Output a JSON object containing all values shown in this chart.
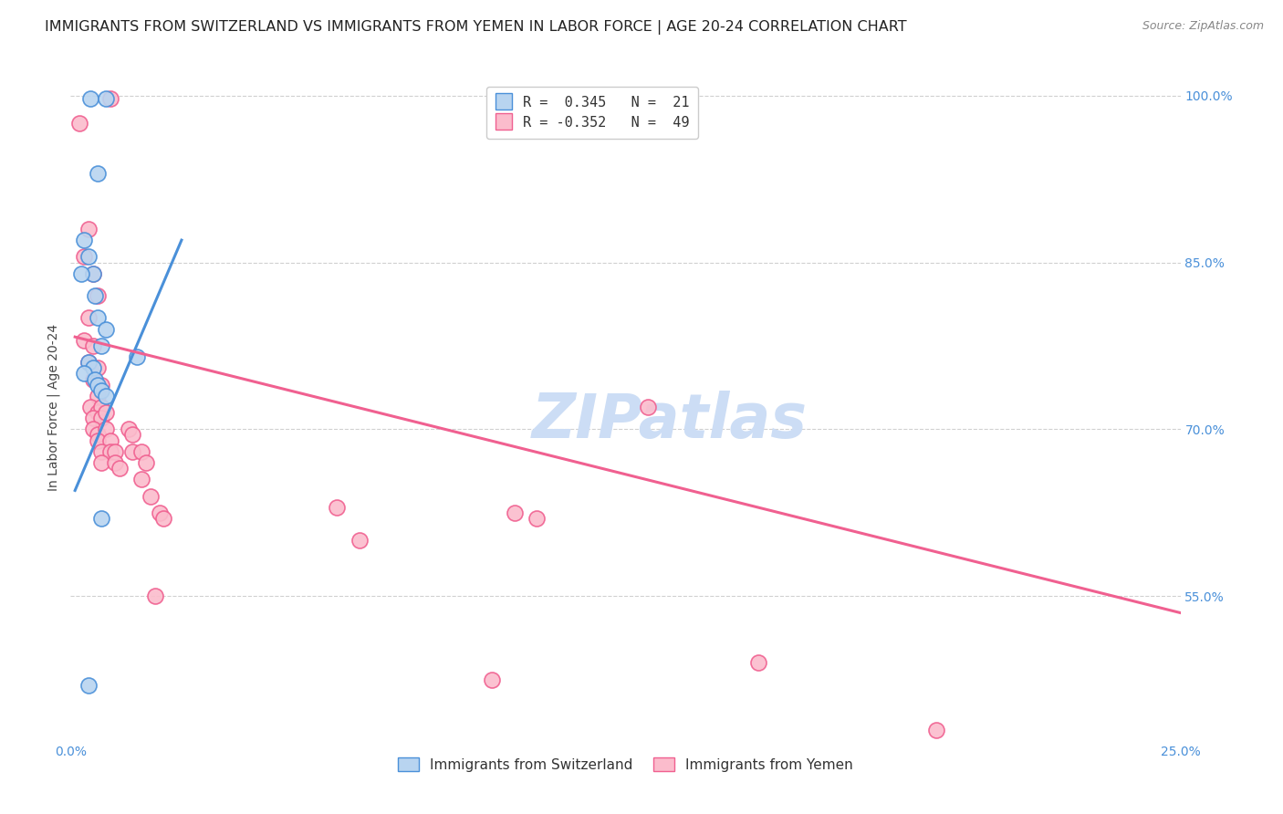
{
  "title": "IMMIGRANTS FROM SWITZERLAND VS IMMIGRANTS FROM YEMEN IN LABOR FORCE | AGE 20-24 CORRELATION CHART",
  "source": "Source: ZipAtlas.com",
  "ylabel": "In Labor Force | Age 20-24",
  "xlim": [
    0.0,
    0.25
  ],
  "ylim": [
    0.42,
    1.02
  ],
  "x_tick_positions": [
    0.0,
    0.05,
    0.1,
    0.15,
    0.2,
    0.25
  ],
  "x_tick_labels": [
    "0.0%",
    "",
    "",
    "",
    "",
    "25.0%"
  ],
  "y_tick_positions": [
    0.55,
    0.7,
    0.85,
    1.0
  ],
  "y_tick_labels": [
    "55.0%",
    "70.0%",
    "85.0%",
    "100.0%"
  ],
  "swiss_scatter": [
    [
      0.0045,
      0.997
    ],
    [
      0.008,
      0.997
    ],
    [
      0.006,
      0.93
    ],
    [
      0.003,
      0.87
    ],
    [
      0.004,
      0.855
    ],
    [
      0.005,
      0.84
    ],
    [
      0.0055,
      0.82
    ],
    [
      0.006,
      0.8
    ],
    [
      0.0025,
      0.84
    ],
    [
      0.008,
      0.79
    ],
    [
      0.007,
      0.775
    ],
    [
      0.004,
      0.76
    ],
    [
      0.005,
      0.755
    ],
    [
      0.003,
      0.75
    ],
    [
      0.0055,
      0.745
    ],
    [
      0.006,
      0.74
    ],
    [
      0.007,
      0.735
    ],
    [
      0.008,
      0.73
    ],
    [
      0.015,
      0.765
    ],
    [
      0.007,
      0.62
    ],
    [
      0.004,
      0.47
    ]
  ],
  "yemen_scatter": [
    [
      0.002,
      0.975
    ],
    [
      0.009,
      0.997
    ],
    [
      0.004,
      0.88
    ],
    [
      0.003,
      0.855
    ],
    [
      0.005,
      0.84
    ],
    [
      0.006,
      0.82
    ],
    [
      0.004,
      0.8
    ],
    [
      0.003,
      0.78
    ],
    [
      0.005,
      0.775
    ],
    [
      0.004,
      0.76
    ],
    [
      0.006,
      0.755
    ],
    [
      0.005,
      0.745
    ],
    [
      0.007,
      0.74
    ],
    [
      0.006,
      0.73
    ],
    [
      0.0045,
      0.72
    ],
    [
      0.006,
      0.715
    ],
    [
      0.007,
      0.72
    ],
    [
      0.005,
      0.71
    ],
    [
      0.007,
      0.71
    ],
    [
      0.008,
      0.715
    ],
    [
      0.005,
      0.7
    ],
    [
      0.006,
      0.695
    ],
    [
      0.008,
      0.7
    ],
    [
      0.006,
      0.69
    ],
    [
      0.009,
      0.69
    ],
    [
      0.007,
      0.68
    ],
    [
      0.009,
      0.68
    ],
    [
      0.01,
      0.68
    ],
    [
      0.007,
      0.67
    ],
    [
      0.01,
      0.67
    ],
    [
      0.011,
      0.665
    ],
    [
      0.013,
      0.7
    ],
    [
      0.014,
      0.695
    ],
    [
      0.014,
      0.68
    ],
    [
      0.016,
      0.68
    ],
    [
      0.017,
      0.67
    ],
    [
      0.016,
      0.655
    ],
    [
      0.018,
      0.64
    ],
    [
      0.02,
      0.625
    ],
    [
      0.021,
      0.62
    ],
    [
      0.019,
      0.55
    ],
    [
      0.06,
      0.63
    ],
    [
      0.065,
      0.6
    ],
    [
      0.095,
      0.475
    ],
    [
      0.1,
      0.625
    ],
    [
      0.105,
      0.62
    ],
    [
      0.13,
      0.72
    ],
    [
      0.155,
      0.49
    ],
    [
      0.195,
      0.43
    ]
  ],
  "swiss_line_x": [
    0.001,
    0.025
  ],
  "swiss_line_y": [
    0.645,
    0.87
  ],
  "yemen_line_x": [
    0.001,
    0.25
  ],
  "yemen_line_y": [
    0.783,
    0.535
  ],
  "swiss_color": "#4a90d9",
  "yemen_color": "#f06090",
  "swiss_fill_color": "#b8d4f0",
  "yemen_fill_color": "#fbbccc",
  "bg_color": "#ffffff",
  "grid_color": "#d0d0d0",
  "tick_color": "#4a90d9",
  "label_color": "#444444",
  "title_color": "#222222",
  "source_color": "#888888",
  "watermark_text": "ZIPatlas",
  "watermark_color": "#ccddf5",
  "legend_label_swiss": "R =  0.345   N =  21",
  "legend_label_yemen": "R = -0.352   N =  49",
  "bottom_legend_swiss": "Immigrants from Switzerland",
  "bottom_legend_yemen": "Immigrants from Yemen",
  "title_fontsize": 11.5,
  "tick_fontsize": 10,
  "label_fontsize": 10,
  "legend_fontsize": 11,
  "source_fontsize": 9
}
